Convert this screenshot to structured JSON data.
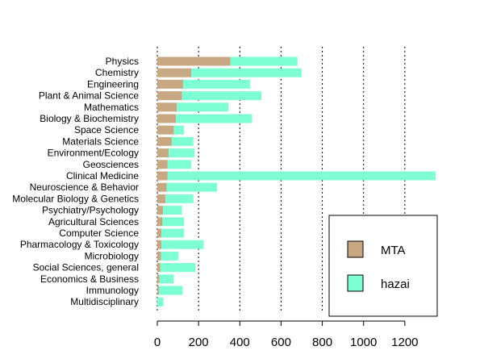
{
  "chart_data": {
    "type": "bar",
    "orientation": "horizontal",
    "stacked": true,
    "title": "",
    "xlabel": "",
    "ylabel": "",
    "categories": [
      "Physics",
      "Chemistry",
      "Engineering",
      "Plant & Animal Science",
      "Mathematics",
      "Biology & Biochemistry",
      "Space Science",
      "Materials Science",
      "Environment/Ecology",
      "Geosciences",
      "Clinical Medicine",
      "Neuroscience & Behavior",
      "Molecular Biology & Genetics",
      "Psychiatry/Psychology",
      "Agricultural Sciences",
      "Computer Science",
      "Pharmacology & Toxicology",
      "Microbiology",
      "Social Sciences, general",
      "Economics & Business",
      "Immunology",
      "Multidisciplinary"
    ],
    "series": [
      {
        "name": "MTA",
        "color": "#C8A882",
        "values": [
          355,
          165,
          125,
          120,
          95,
          90,
          80,
          70,
          55,
          50,
          50,
          45,
          40,
          28,
          25,
          20,
          20,
          18,
          15,
          10,
          8,
          0
        ]
      },
      {
        "name": "hazai",
        "color": "#7FFFD4",
        "values": [
          325,
          535,
          325,
          385,
          250,
          370,
          50,
          105,
          125,
          115,
          1300,
          245,
          135,
          92,
          105,
          110,
          205,
          85,
          170,
          70,
          115,
          30
        ]
      }
    ],
    "xlim": [
      0,
      1360
    ],
    "xticks": [
      0,
      200,
      400,
      600,
      800,
      1000,
      1200
    ],
    "grid": "vertical-dotted",
    "legend": {
      "position": "bottom-right"
    }
  }
}
